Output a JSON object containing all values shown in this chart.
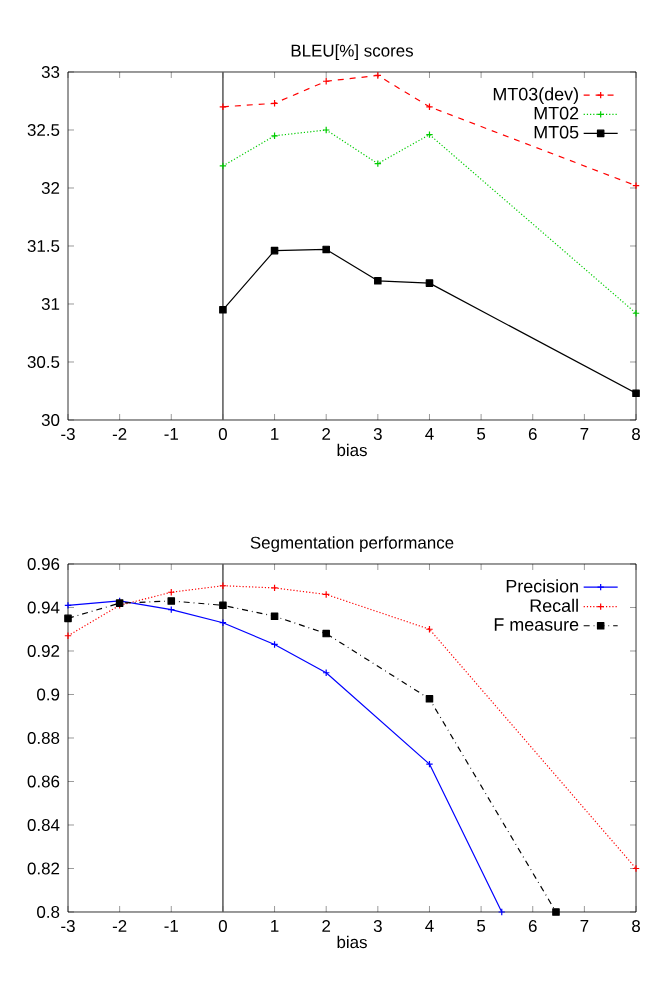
{
  "chart_data": [
    {
      "type": "line",
      "title": "BLEU[%] scores",
      "xlabel": "bias",
      "xlim": [
        -3,
        8
      ],
      "xticks": [
        -3,
        -2,
        -1,
        0,
        1,
        2,
        3,
        4,
        5,
        6,
        7,
        8
      ],
      "ylim": [
        30,
        33
      ],
      "yticks": [
        30,
        30.5,
        31,
        31.5,
        32,
        32.5,
        33
      ],
      "legend": "top right",
      "grid": false,
      "ref_lines": [
        {
          "axis": "x",
          "value": 0,
          "color": "#606060"
        }
      ],
      "series": [
        {
          "name": "MT03(dev)",
          "color": "#ff0000",
          "marker": "cross",
          "line_style": "dashed",
          "x": [
            0,
            1,
            2,
            3,
            4,
            8
          ],
          "values": [
            32.7,
            32.73,
            32.92,
            32.97,
            32.7,
            32.02
          ]
        },
        {
          "name": "MT02",
          "color": "#00cc00",
          "marker": "cross",
          "line_style": "dotted",
          "x": [
            0,
            1,
            2,
            3,
            4,
            8
          ],
          "values": [
            32.19,
            32.45,
            32.5,
            32.21,
            32.46,
            30.92
          ]
        },
        {
          "name": "MT05",
          "color": "#000000",
          "marker": "square",
          "line_style": "solid",
          "x": [
            0,
            1,
            2,
            3,
            4,
            8
          ],
          "values": [
            30.95,
            31.46,
            31.47,
            31.2,
            31.18,
            30.23
          ]
        }
      ]
    },
    {
      "type": "line",
      "title": "Segmentation performance",
      "xlabel": "bias",
      "xlim": [
        -3,
        8
      ],
      "xticks": [
        -3,
        -2,
        -1,
        0,
        1,
        2,
        3,
        4,
        5,
        6,
        7,
        8
      ],
      "ylim": [
        0.8,
        0.96
      ],
      "yticks": [
        0.8,
        0.82,
        0.84,
        0.86,
        0.88,
        0.9,
        0.92,
        0.94,
        0.96
      ],
      "legend": "top right",
      "grid": false,
      "ref_lines": [
        {
          "axis": "x",
          "value": 0,
          "color": "#606060"
        }
      ],
      "series": [
        {
          "name": "Precision",
          "color": "#0000ff",
          "marker": "cross",
          "line_style": "solid",
          "x": [
            -3,
            -2,
            -1,
            0,
            1,
            2,
            4,
            5.4
          ],
          "values": [
            0.941,
            0.943,
            0.939,
            0.933,
            0.923,
            0.91,
            0.868,
            0.8
          ]
        },
        {
          "name": "Recall",
          "color": "#ff0000",
          "marker": "cross",
          "line_style": "dotted",
          "x": [
            -3,
            -2,
            -1,
            0,
            1,
            2,
            4,
            8
          ],
          "values": [
            0.927,
            0.941,
            0.947,
            0.95,
            0.949,
            0.946,
            0.93,
            0.82
          ]
        },
        {
          "name": "F measure",
          "color": "#000000",
          "marker": "square",
          "line_style": "dashdotted",
          "x": [
            -3,
            -2,
            -1,
            0,
            1,
            2,
            4,
            6.45
          ],
          "values": [
            0.935,
            0.942,
            0.943,
            0.941,
            0.936,
            0.928,
            0.898,
            0.8
          ]
        }
      ]
    }
  ]
}
